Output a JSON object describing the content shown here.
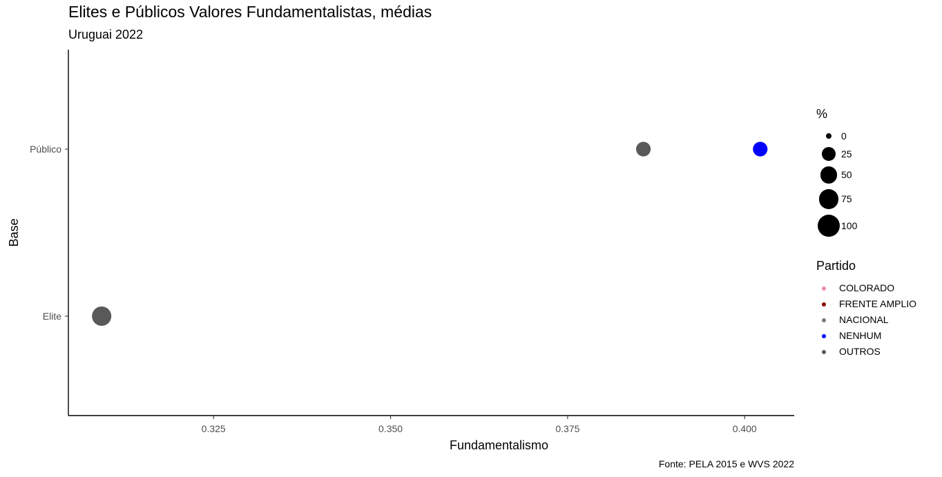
{
  "chart_data": {
    "type": "scatter",
    "title": "Elites e Públicos Valores Fundamentalistas, médias",
    "subtitle": "Uruguai 2022",
    "caption": "Fonte: PELA 2015 e WVS 2022",
    "xlabel": "Fundamentalismo",
    "ylabel": "Base",
    "xlim": [
      0.3045,
      0.407
    ],
    "x_ticks": [
      0.325,
      0.35,
      0.375,
      0.4
    ],
    "x_tick_labels": [
      "0.325",
      "0.350",
      "0.375",
      "0.400"
    ],
    "categories": [
      "Elite",
      "Público"
    ],
    "grid": false,
    "legend_position": "right",
    "points": [
      {
        "base": "Público",
        "x": 0.3857,
        "partido": "OUTROS",
        "pct": 30
      },
      {
        "base": "Público",
        "x": 0.4022,
        "partido": "NENHUM",
        "pct": 30
      },
      {
        "base": "Elite",
        "x": 0.3092,
        "partido": "OUTROS",
        "pct": 70
      }
    ],
    "size_legend": {
      "title": "%",
      "breaks": [
        "0",
        "25",
        "50",
        "75",
        "100"
      ],
      "values": [
        0,
        25,
        50,
        75,
        100
      ]
    },
    "color_legend": {
      "title": "Partido",
      "entries": [
        {
          "label": "COLORADO",
          "color": "#f08aa0"
        },
        {
          "label": "FRENTE AMPLIO",
          "color": "#8b0000"
        },
        {
          "label": "NACIONAL",
          "color": "#7a7a7a"
        },
        {
          "label": "NENHUM",
          "color": "#0000ff"
        },
        {
          "label": "OUTROS",
          "color": "#595959"
        }
      ]
    }
  }
}
